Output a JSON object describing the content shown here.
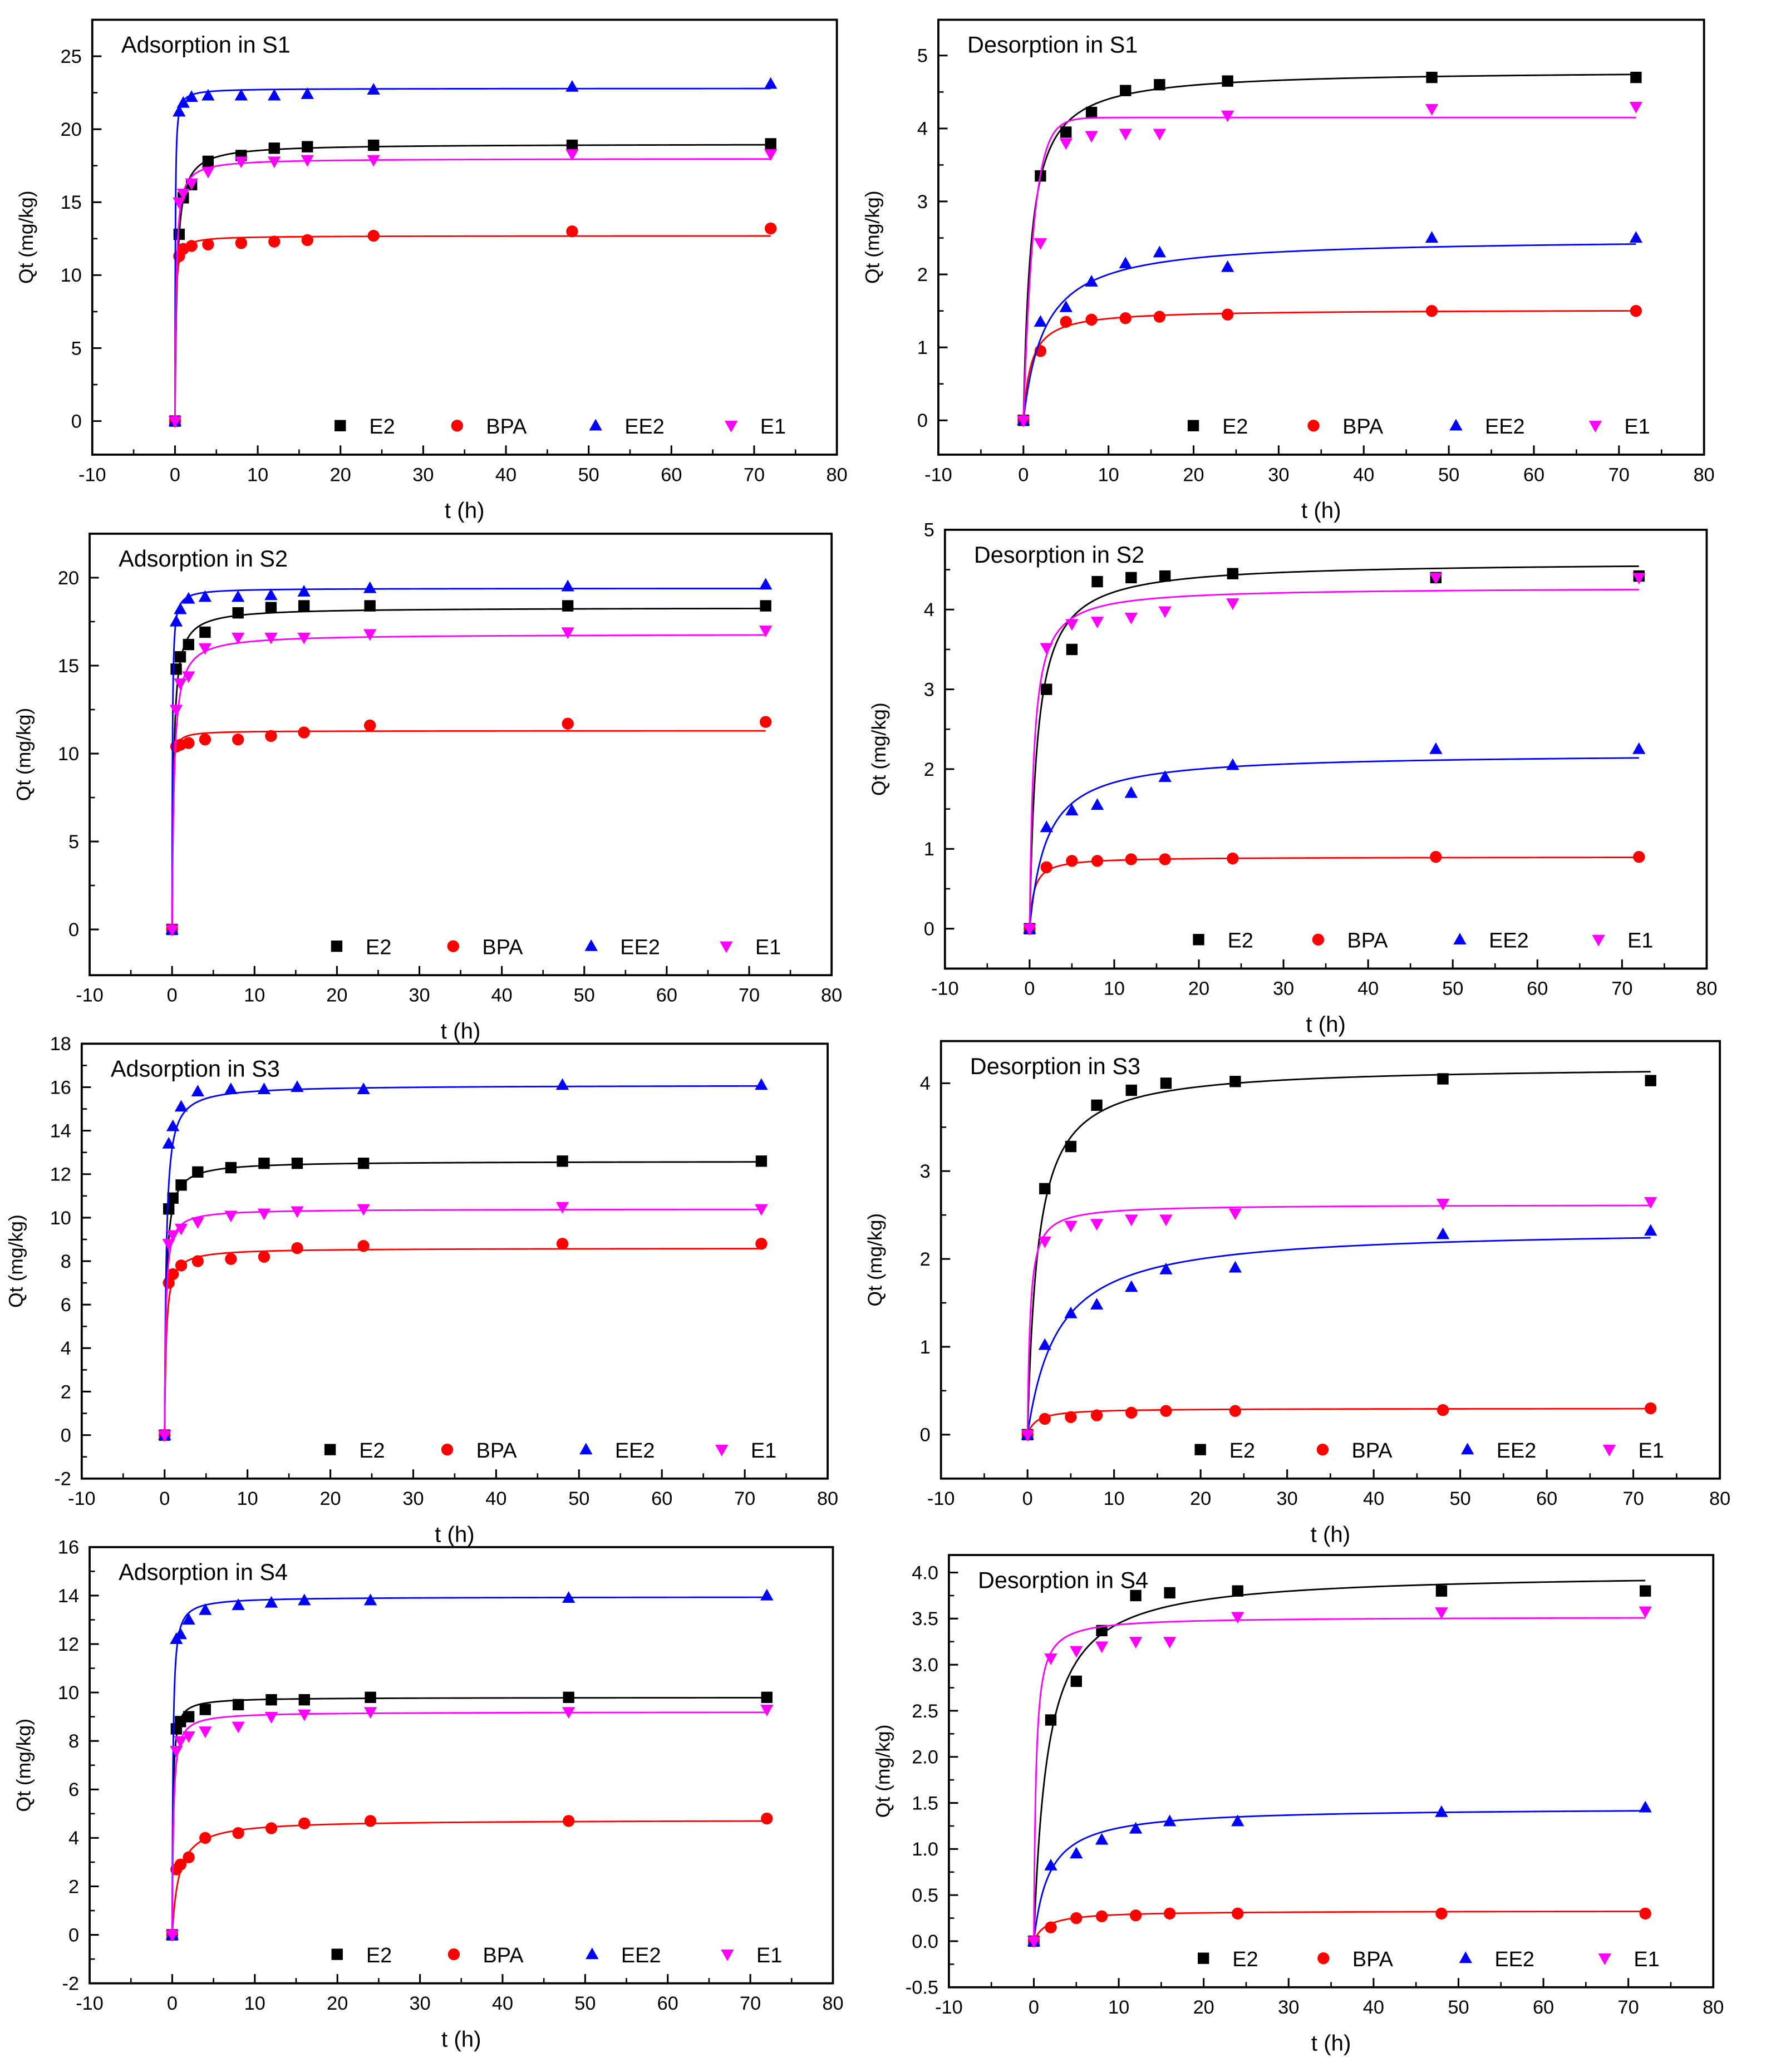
{
  "common": {
    "xlabel": "t (h)",
    "ylabel": "Qt (mg/kg)",
    "xlim": [
      -10,
      80
    ],
    "xticks": [
      -10,
      0,
      10,
      20,
      30,
      40,
      50,
      60,
      70,
      80
    ],
    "legend": [
      "E2",
      "BPA",
      "EE2",
      "E1"
    ],
    "colors": {
      "E2": "#000000",
      "BPA": "#ff0000",
      "EE2": "#0000ff",
      "E1": "#ff00ff"
    },
    "markers": {
      "E2": "square",
      "BPA": "circle",
      "EE2": "triangle-up",
      "E1": "triangle-down"
    }
  },
  "chart_data": [
    {
      "type": "scatter",
      "title": "Adsorption in S1",
      "xlabel": "t (h)",
      "ylabel": "Qt (mg/kg)",
      "xlim": [
        -10,
        80
      ],
      "ylim": [
        -2.3,
        27.5
      ],
      "yticks": [
        0,
        5,
        10,
        15,
        20,
        25
      ],
      "legend_position": "bottom",
      "x": [
        0,
        0.5,
        1,
        2,
        4,
        8,
        12,
        16,
        24,
        48,
        72
      ],
      "series": [
        {
          "name": "E2",
          "values": [
            0,
            12.8,
            15.3,
            16.2,
            17.8,
            18.2,
            18.7,
            18.8,
            18.9,
            18.9,
            19.0
          ],
          "fit": {
            "qe": 19.0,
            "t_half": 0.25
          }
        },
        {
          "name": "BPA",
          "values": [
            0,
            11.3,
            11.8,
            12.0,
            12.1,
            12.2,
            12.3,
            12.4,
            12.7,
            13.0,
            13.2
          ],
          "fit": {
            "qe": 12.7,
            "t_half": 0.08
          }
        },
        {
          "name": "EE2",
          "values": [
            0,
            21.2,
            21.8,
            22.2,
            22.3,
            22.3,
            22.3,
            22.4,
            22.7,
            22.9,
            23.1
          ],
          "fit": {
            "qe": 22.8,
            "t_half": 0.04
          }
        },
        {
          "name": "E1",
          "values": [
            0,
            15.0,
            15.6,
            16.3,
            17.1,
            17.8,
            17.8,
            17.9,
            17.9,
            18.3,
            18.3
          ],
          "fit": {
            "qe": 18.0,
            "t_half": 0.15
          }
        }
      ]
    },
    {
      "type": "scatter",
      "title": "Desorption in S1",
      "xlabel": "t (h)",
      "ylabel": "Qt (mg/kg)",
      "xlim": [
        -10,
        80
      ],
      "ylim": [
        -0.47,
        5.49
      ],
      "yticks": [
        0,
        1,
        2,
        3,
        4,
        5
      ],
      "legend_position": "bottom",
      "x": [
        0,
        2,
        5,
        8,
        12,
        16,
        24,
        48,
        72
      ],
      "series": [
        {
          "name": "E2",
          "values": [
            0,
            3.35,
            3.95,
            4.22,
            4.52,
            4.6,
            4.65,
            4.7,
            4.7
          ],
          "fit": {
            "qe": 4.8,
            "t_half": 0.9
          }
        },
        {
          "name": "BPA",
          "values": [
            0,
            0.95,
            1.35,
            1.38,
            1.4,
            1.42,
            1.45,
            1.5,
            1.5
          ],
          "fit": {
            "qe": 1.52,
            "t_half": 0.9
          }
        },
        {
          "name": "EE2",
          "values": [
            0,
            1.35,
            1.55,
            1.9,
            2.15,
            2.3,
            2.1,
            2.5,
            2.5
          ],
          "fit": {
            "qe": 2.5,
            "t_half": 2.5
          }
        },
        {
          "name": "E1",
          "values": [
            0,
            2.43,
            3.8,
            3.9,
            3.93,
            3.93,
            4.18,
            4.27,
            4.3
          ],
          "fit": {
            "qe": 4.15,
            "t_half": 0.12,
            "sigmoid": true
          }
        }
      ]
    },
    {
      "type": "scatter",
      "title": "Adsorption in S2",
      "xlabel": "t (h)",
      "ylabel": "Qt (mg/kg)",
      "xlim": [
        -10,
        80
      ],
      "ylim": [
        -2.6,
        22.5
      ],
      "yticks": [
        0,
        5,
        10,
        15,
        20
      ],
      "legend_position": "bottom",
      "x": [
        0,
        0.5,
        1,
        2,
        4,
        8,
        12,
        16,
        24,
        48,
        72
      ],
      "series": [
        {
          "name": "E2",
          "values": [
            0,
            14.8,
            15.5,
            16.2,
            16.9,
            18.0,
            18.3,
            18.4,
            18.4,
            18.4,
            18.4
          ],
          "fit": {
            "qe": 18.3,
            "t_half": 0.2
          }
        },
        {
          "name": "BPA",
          "values": [
            0,
            10.4,
            10.5,
            10.6,
            10.8,
            10.8,
            11.0,
            11.2,
            11.6,
            11.7,
            11.8
          ],
          "fit": {
            "qe": 11.3,
            "t_half": 0.05
          }
        },
        {
          "name": "EE2",
          "values": [
            0,
            17.5,
            18.2,
            18.8,
            18.9,
            18.9,
            19.0,
            19.2,
            19.4,
            19.5,
            19.6
          ],
          "fit": {
            "qe": 19.4,
            "t_half": 0.05
          }
        },
        {
          "name": "E1",
          "values": [
            0,
            12.5,
            14.0,
            14.4,
            16.0,
            16.6,
            16.6,
            16.6,
            16.8,
            16.9,
            17.0
          ],
          "fit": {
            "qe": 16.8,
            "t_half": 0.25
          }
        }
      ]
    },
    {
      "type": "scatter",
      "title": "Desorption in S2",
      "xlabel": "t (h)",
      "ylabel": "Qt (mg/kg)",
      "xlim": [
        -10,
        80
      ],
      "ylim": [
        -0.5,
        5.0
      ],
      "yticks": [
        0,
        1,
        2,
        3,
        4,
        5
      ],
      "legend_position": "bottom",
      "x": [
        0,
        2,
        5,
        8,
        12,
        16,
        24,
        48,
        72
      ],
      "series": [
        {
          "name": "E2",
          "values": [
            0,
            3.0,
            3.5,
            4.35,
            4.4,
            4.42,
            4.45,
            4.4,
            4.42
          ],
          "fit": {
            "qe": 4.6,
            "t_half": 0.9
          }
        },
        {
          "name": "BPA",
          "values": [
            0,
            0.77,
            0.85,
            0.85,
            0.87,
            0.87,
            0.88,
            0.9,
            0.9
          ],
          "fit": {
            "qe": 0.9,
            "t_half": 0.5
          }
        },
        {
          "name": "EE2",
          "values": [
            0,
            1.27,
            1.48,
            1.55,
            1.7,
            1.9,
            2.05,
            2.25,
            2.25
          ],
          "fit": {
            "qe": 2.2,
            "t_half": 2.0
          }
        },
        {
          "name": "E1",
          "values": [
            0,
            3.52,
            3.82,
            3.85,
            3.9,
            3.98,
            4.08,
            4.4,
            4.4
          ],
          "fit": {
            "qe": 4.28,
            "t_half": 0.5
          }
        }
      ]
    },
    {
      "type": "scatter",
      "title": "Adsorption in S3",
      "xlabel": "t (h)",
      "ylabel": "Qt (mg/kg)",
      "xlim": [
        -10,
        80
      ],
      "ylim": [
        -2,
        18
      ],
      "yticks": [
        -2,
        0,
        2,
        4,
        6,
        8,
        10,
        12,
        14,
        16,
        18
      ],
      "legend_position": "bottom",
      "x": [
        0,
        0.5,
        1,
        2,
        4,
        8,
        12,
        16,
        24,
        48,
        72
      ],
      "series": [
        {
          "name": "E2",
          "values": [
            0,
            10.4,
            10.9,
            11.5,
            12.1,
            12.3,
            12.5,
            12.5,
            12.5,
            12.6,
            12.6
          ],
          "fit": {
            "qe": 12.6,
            "t_half": 0.2
          }
        },
        {
          "name": "BPA",
          "values": [
            0,
            7.0,
            7.4,
            7.8,
            8.0,
            8.1,
            8.2,
            8.6,
            8.7,
            8.8,
            8.8
          ],
          "fit": {
            "qe": 8.6,
            "t_half": 0.2
          }
        },
        {
          "name": "EE2",
          "values": [
            0,
            13.4,
            14.2,
            15.1,
            15.8,
            15.9,
            15.9,
            16.0,
            15.9,
            16.1,
            16.1
          ],
          "fit": {
            "qe": 16.1,
            "t_half": 0.2
          }
        },
        {
          "name": "E1",
          "values": [
            0,
            8.8,
            9.2,
            9.5,
            9.8,
            10.1,
            10.2,
            10.3,
            10.4,
            10.5,
            10.4
          ],
          "fit": {
            "qe": 10.4,
            "t_half": 0.15
          }
        }
      ]
    },
    {
      "type": "scatter",
      "title": "Desorption in S3",
      "xlabel": "t (h)",
      "ylabel": "Qt (mg/kg)",
      "xlim": [
        -10,
        80
      ],
      "ylim": [
        -0.5,
        4.48
      ],
      "yticks": [
        0,
        1,
        2,
        3,
        4
      ],
      "legend_position": "bottom",
      "x": [
        0,
        2,
        5,
        8,
        12,
        16,
        24,
        48,
        72
      ],
      "series": [
        {
          "name": "E2",
          "values": [
            0,
            2.8,
            3.28,
            3.75,
            3.92,
            4.0,
            4.02,
            4.05,
            4.03
          ],
          "fit": {
            "qe": 4.2,
            "t_half": 1.2
          }
        },
        {
          "name": "BPA",
          "values": [
            0,
            0.18,
            0.2,
            0.22,
            0.25,
            0.27,
            0.27,
            0.28,
            0.3
          ],
          "fit": {
            "qe": 0.3,
            "t_half": 1.0
          }
        },
        {
          "name": "EE2",
          "values": [
            0,
            1.02,
            1.38,
            1.48,
            1.68,
            1.88,
            1.9,
            2.28,
            2.32
          ],
          "fit": {
            "qe": 2.35,
            "t_half": 3.5
          }
        },
        {
          "name": "E1",
          "values": [
            0,
            2.2,
            2.38,
            2.4,
            2.45,
            2.45,
            2.52,
            2.63,
            2.65
          ],
          "fit": {
            "qe": 2.62,
            "t_half": 0.3
          }
        }
      ]
    },
    {
      "type": "scatter",
      "title": "Adsorption in S4",
      "xlabel": "t (h)",
      "ylabel": "Qt (mg/kg)",
      "xlim": [
        -10,
        80
      ],
      "ylim": [
        -2,
        16
      ],
      "yticks": [
        -2,
        0,
        2,
        4,
        6,
        8,
        10,
        12,
        14,
        16
      ],
      "legend_position": "bottom",
      "x": [
        0,
        0.5,
        1,
        2,
        4,
        8,
        12,
        16,
        24,
        48,
        72
      ],
      "series": [
        {
          "name": "E2",
          "values": [
            0,
            8.5,
            8.8,
            9.0,
            9.3,
            9.5,
            9.7,
            9.7,
            9.8,
            9.8,
            9.8
          ],
          "fit": {
            "qe": 9.8,
            "t_half": 0.1
          }
        },
        {
          "name": "BPA",
          "values": [
            0,
            2.7,
            2.9,
            3.2,
            4.0,
            4.2,
            4.4,
            4.6,
            4.7,
            4.7,
            4.8
          ],
          "fit": {
            "qe": 4.75,
            "t_half": 0.8
          }
        },
        {
          "name": "EE2",
          "values": [
            0,
            12.2,
            12.4,
            13.0,
            13.4,
            13.6,
            13.7,
            13.8,
            13.8,
            13.9,
            14.0
          ],
          "fit": {
            "qe": 13.95,
            "t_half": 0.1
          }
        },
        {
          "name": "E1",
          "values": [
            0,
            7.6,
            8.0,
            8.2,
            8.4,
            8.6,
            9.0,
            9.1,
            9.2,
            9.2,
            9.3
          ],
          "fit": {
            "qe": 9.2,
            "t_half": 0.15
          }
        }
      ]
    },
    {
      "type": "scatter",
      "title": "Desorption in S4",
      "xlabel": "t (h)",
      "ylabel": "Qt (mg/kg)",
      "xlim": [
        -10,
        80
      ],
      "ylim": [
        -0.5,
        4.19
      ],
      "yticks": [
        -0.5,
        0.0,
        0.5,
        1.0,
        1.5,
        2.0,
        2.5,
        3.0,
        3.5,
        4.0
      ],
      "ytick_labels": [
        "-0.5",
        "0.0",
        "0.5",
        "1.0",
        "1.5",
        "2.0",
        "2.5",
        "3.0",
        "3.5",
        "4.0"
      ],
      "legend_position": "bottom",
      "x": [
        0,
        2,
        5,
        8,
        12,
        16,
        24,
        48,
        72
      ],
      "series": [
        {
          "name": "E2",
          "values": [
            0,
            2.4,
            2.82,
            3.37,
            3.75,
            3.78,
            3.8,
            3.8,
            3.8
          ],
          "fit": {
            "qe": 4.0,
            "t_half": 1.6
          }
        },
        {
          "name": "BPA",
          "values": [
            0,
            0.15,
            0.25,
            0.27,
            0.28,
            0.3,
            0.3,
            0.3,
            0.3
          ],
          "fit": {
            "qe": 0.33,
            "t_half": 1.5
          }
        },
        {
          "name": "EE2",
          "values": [
            0,
            0.82,
            0.95,
            1.1,
            1.22,
            1.3,
            1.3,
            1.4,
            1.45
          ],
          "fit": {
            "qe": 1.45,
            "t_half": 1.8
          }
        },
        {
          "name": "E1",
          "values": [
            0,
            3.07,
            3.15,
            3.2,
            3.25,
            3.25,
            3.52,
            3.57,
            3.58
          ],
          "fit": {
            "qe": 3.52,
            "t_half": 0.25
          }
        }
      ]
    }
  ]
}
